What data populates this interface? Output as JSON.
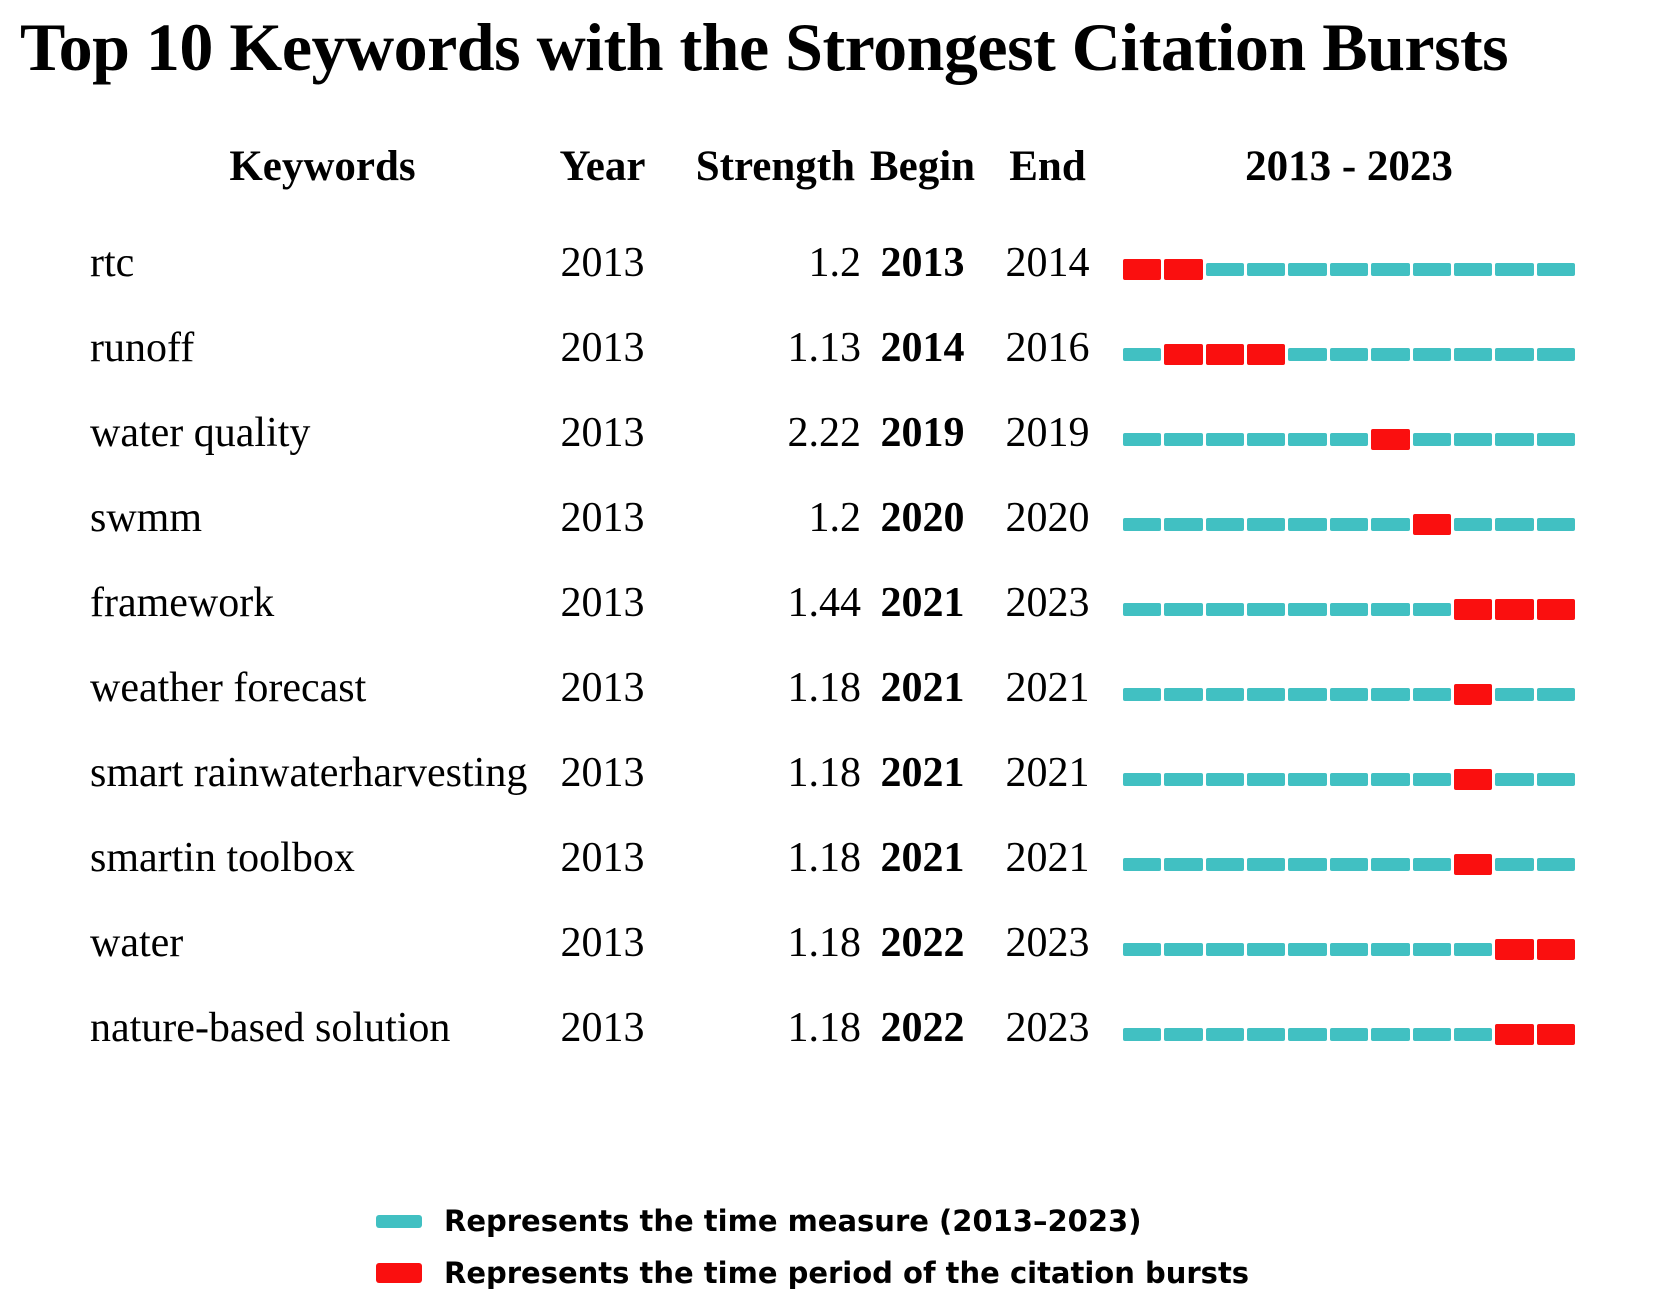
{
  "title": "Top 10 Keywords with the Strongest Citation Bursts",
  "columns": {
    "keywords": "Keywords",
    "year": "Year",
    "strength": "Strength",
    "begin": "Begin",
    "end": "End",
    "timeline": "2013 - 2023"
  },
  "timeline": {
    "start_year": 2013,
    "end_year": 2023,
    "segments": 11
  },
  "colors": {
    "measure": "#41C0C2",
    "burst": "#FA0F0F"
  },
  "chart_data": {
    "type": "table",
    "title": "Top 10 Keywords with the Strongest Citation Bursts",
    "columns": [
      "Keywords",
      "Year",
      "Strength",
      "Begin",
      "End",
      "2013 - 2023"
    ],
    "timeline_range": [
      2013,
      2023
    ],
    "rows": [
      {
        "keyword": "rtc",
        "year": "2013",
        "strength": "1.2",
        "begin": 2013,
        "end": 2014
      },
      {
        "keyword": "runoff",
        "year": "2013",
        "strength": "1.13",
        "begin": 2014,
        "end": 2016
      },
      {
        "keyword": "water quality",
        "year": "2013",
        "strength": "2.22",
        "begin": 2019,
        "end": 2019
      },
      {
        "keyword": "swmm",
        "year": "2013",
        "strength": "1.2",
        "begin": 2020,
        "end": 2020
      },
      {
        "keyword": "framework",
        "year": "2013",
        "strength": "1.44",
        "begin": 2021,
        "end": 2023
      },
      {
        "keyword": "weather forecast",
        "year": "2013",
        "strength": "1.18",
        "begin": 2021,
        "end": 2021
      },
      {
        "keyword": "smart rainwaterharvesting",
        "year": "2013",
        "strength": "1.18",
        "begin": 2021,
        "end": 2021
      },
      {
        "keyword": "smartin toolbox",
        "year": "2013",
        "strength": "1.18",
        "begin": 2021,
        "end": 2021
      },
      {
        "keyword": "water",
        "year": "2013",
        "strength": "1.18",
        "begin": 2022,
        "end": 2023
      },
      {
        "keyword": "nature-based solution",
        "year": "2013",
        "strength": "1.18",
        "begin": 2022,
        "end": 2023
      }
    ]
  },
  "legend": [
    {
      "type": "measure",
      "label": "Represents the time measure (2013–2023)"
    },
    {
      "type": "burst",
      "label": "Represents the time period of the citation bursts"
    }
  ]
}
